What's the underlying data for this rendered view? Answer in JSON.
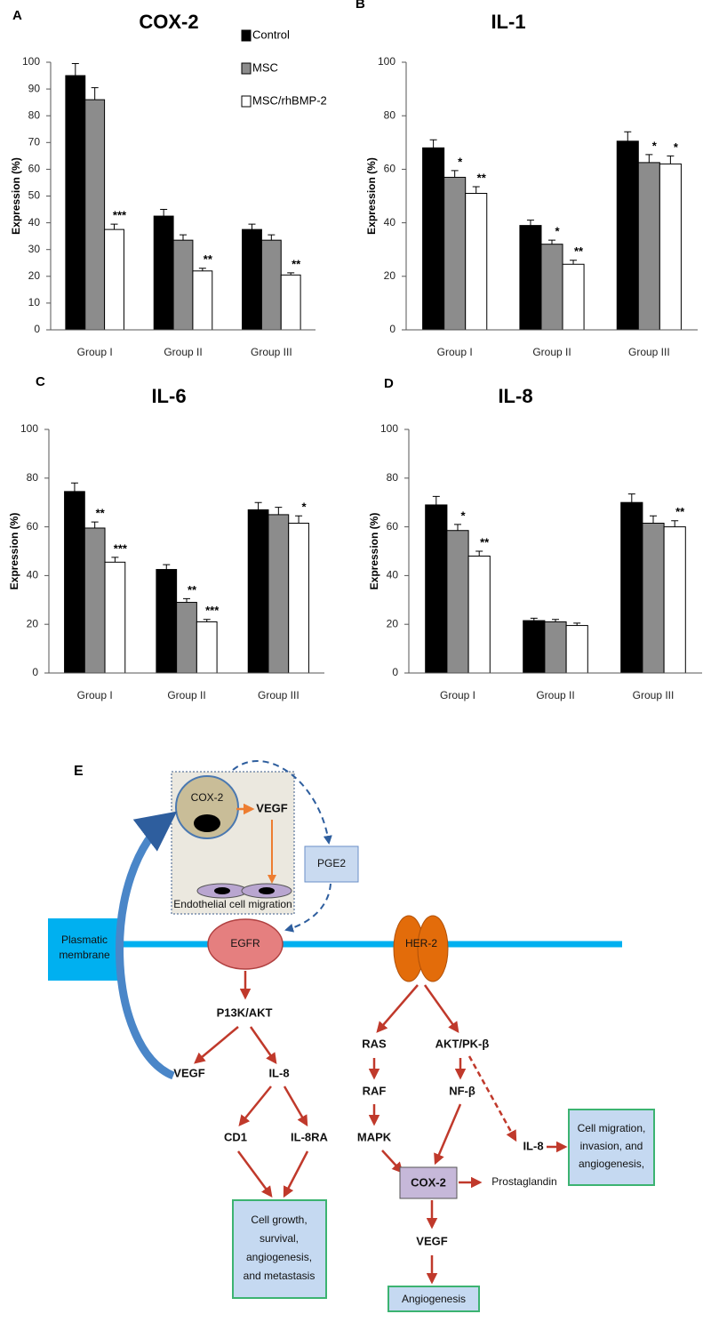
{
  "chart_data": [
    {
      "type": "bar",
      "panel": "A",
      "title": "COX-2",
      "y_label": "Expression (%)",
      "categories": [
        "Group I",
        "Group II",
        "Group III"
      ],
      "ylim": [
        0,
        100
      ],
      "yticks": [
        0,
        10,
        20,
        30,
        40,
        50,
        60,
        70,
        80,
        90,
        100
      ],
      "legend": true,
      "series": [
        {
          "name": "Control",
          "color": "#000000",
          "values": [
            95,
            42.5,
            37.5
          ],
          "errors": [
            4.5,
            2.5,
            2
          ],
          "annotations": [
            null,
            null,
            null
          ]
        },
        {
          "name": "MSC",
          "color": "#8c8c8c",
          "values": [
            86,
            33.5,
            33.5
          ],
          "errors": [
            4.5,
            2,
            2
          ],
          "annotations": [
            null,
            null,
            null
          ]
        },
        {
          "name": "MSC/rhBMP-2",
          "color": "#ffffff",
          "values": [
            37.5,
            22,
            20.5
          ],
          "errors": [
            2,
            1,
            0.8
          ],
          "annotations": [
            "***",
            "**",
            "**"
          ]
        }
      ]
    },
    {
      "type": "bar",
      "panel": "B",
      "title": "IL-1",
      "y_label": "Expression (%)",
      "categories": [
        "Group I",
        "Group II",
        "Group III"
      ],
      "ylim": [
        0,
        100
      ],
      "yticks": [
        0,
        20,
        40,
        60,
        80,
        100
      ],
      "legend": false,
      "series": [
        {
          "color": "#000000",
          "values": [
            68,
            39,
            70.5
          ],
          "errors": [
            3,
            2,
            3.5
          ],
          "annotations": [
            null,
            null,
            null
          ]
        },
        {
          "color": "#8c8c8c",
          "values": [
            57,
            32,
            62.5
          ],
          "errors": [
            2.5,
            1.5,
            3
          ],
          "annotations": [
            "*",
            "*",
            "*"
          ]
        },
        {
          "color": "#ffffff",
          "values": [
            51,
            24.5,
            62
          ],
          "errors": [
            2.5,
            1.5,
            3
          ],
          "annotations": [
            "**",
            "**",
            "*"
          ]
        }
      ]
    },
    {
      "type": "bar",
      "panel": "C",
      "title": "IL-6",
      "y_label": "Expression (%)",
      "categories": [
        "Group I",
        "Group II",
        "Group III"
      ],
      "ylim": [
        0,
        100
      ],
      "yticks": [
        0,
        20,
        40,
        60,
        80,
        100
      ],
      "legend": false,
      "series": [
        {
          "color": "#000000",
          "values": [
            74.5,
            42.5,
            67
          ],
          "errors": [
            3.5,
            2,
            3
          ],
          "annotations": [
            null,
            null,
            null
          ]
        },
        {
          "color": "#8c8c8c",
          "values": [
            59.5,
            29,
            65
          ],
          "errors": [
            2.5,
            1.5,
            3
          ],
          "annotations": [
            "**",
            "**",
            null
          ]
        },
        {
          "color": "#ffffff",
          "values": [
            45.5,
            21,
            61.5
          ],
          "errors": [
            2,
            1,
            3
          ],
          "annotations": [
            "***",
            "***",
            "*"
          ]
        }
      ]
    },
    {
      "type": "bar",
      "panel": "D",
      "title": "IL-8",
      "y_label": "Expression (%)",
      "categories": [
        "Group I",
        "Group II",
        "Group III"
      ],
      "ylim": [
        0,
        100
      ],
      "yticks": [
        0,
        20,
        40,
        60,
        80,
        100
      ],
      "legend": false,
      "series": [
        {
          "color": "#000000",
          "values": [
            69,
            21.5,
            70
          ],
          "errors": [
            3.5,
            1,
            3.5
          ],
          "annotations": [
            null,
            null,
            null
          ]
        },
        {
          "color": "#8c8c8c",
          "values": [
            58.5,
            21,
            61.5
          ],
          "errors": [
            2.5,
            1,
            3
          ],
          "annotations": [
            "*",
            null,
            null
          ]
        },
        {
          "color": "#ffffff",
          "values": [
            48,
            19.5,
            60
          ],
          "errors": [
            2,
            1,
            2.5
          ],
          "annotations": [
            "**",
            null,
            "**"
          ]
        }
      ]
    }
  ],
  "diagram": {
    "panel": "E",
    "inset": {
      "cox2": "COX-2",
      "vegf": "VEGF",
      "cells": "Endothelial cell migration"
    },
    "pge2": "PGE2",
    "membrane": [
      "Plasmatic",
      "membrane"
    ],
    "egfr": "EGFR",
    "her2": "HER-2",
    "pi3k": "P13K/AKT",
    "vegf_left": "VEGF",
    "il8_left": "IL-8",
    "cd1": "CD1",
    "il8ra": "IL-8RA",
    "growth_box": [
      "Cell growth,",
      "survival,",
      "angiogenesis,",
      "and metastasis"
    ],
    "ras": "RAS",
    "akt": "AKT/PK-β",
    "raf": "RAF",
    "nf": "NF-β",
    "mapk": "MAPK",
    "il8_right": "IL-8",
    "migration_box": [
      "Cell migration,",
      "invasion, and",
      "angiogenesis,"
    ],
    "cox2": "COX-2",
    "prostaglandin": "Prostaglandin",
    "vegf_bottom": "VEGF",
    "angiogenesis": "Angiogenesis"
  }
}
